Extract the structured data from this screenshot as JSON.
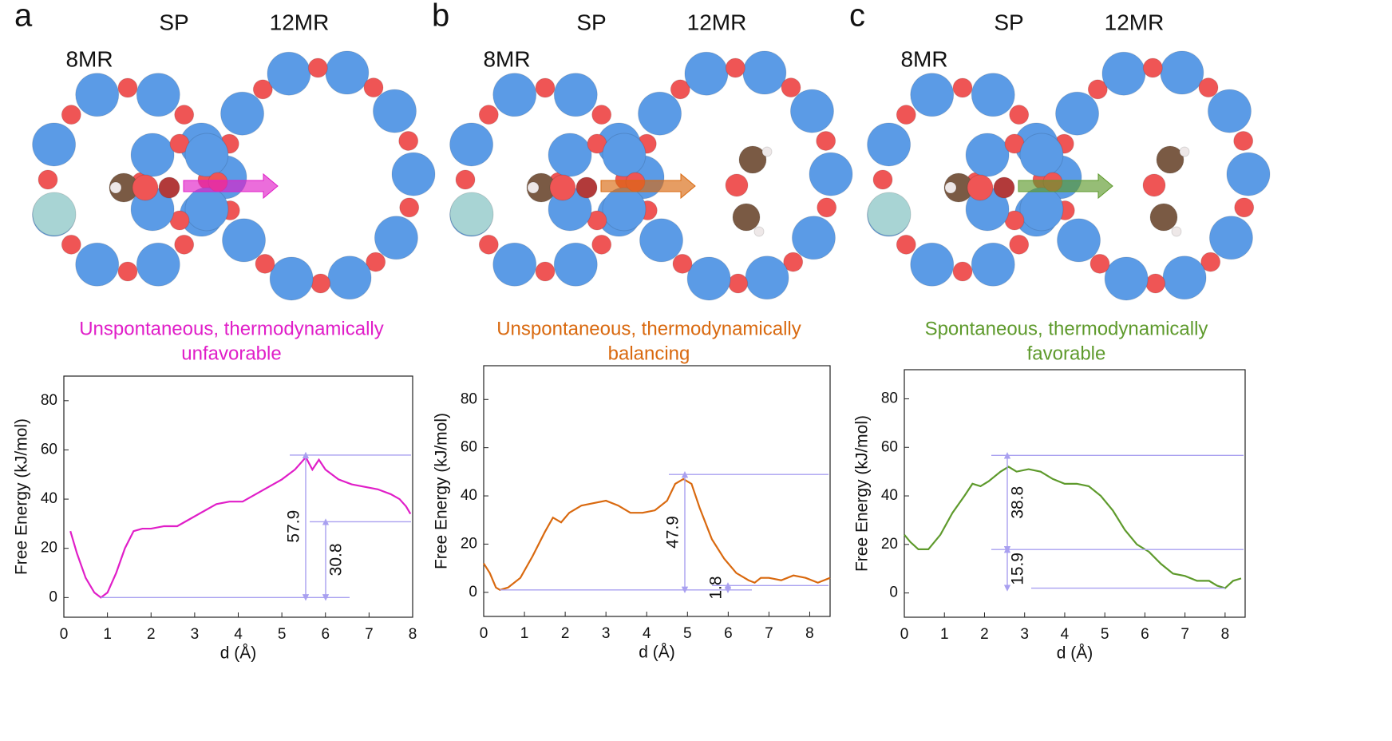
{
  "chart_data": [
    {
      "type": "line",
      "panel": "a",
      "ring_labels": [
        "8MR",
        "SP",
        "12MR"
      ],
      "caption": [
        "Unspontaneous, thermodynamically",
        "unfavorable"
      ],
      "color": "#e01ec8",
      "x_label": "d (Å)",
      "y_label": "Free Energy (kJ/mol)",
      "xlim": [
        0,
        8
      ],
      "xticks": [
        0,
        1,
        2,
        3,
        4,
        5,
        6,
        7,
        8
      ],
      "ylim": [
        -8,
        90
      ],
      "yticks": [
        0,
        20,
        40,
        60,
        80
      ],
      "x": [
        0.15,
        0.3,
        0.5,
        0.7,
        0.85,
        1.0,
        1.2,
        1.4,
        1.6,
        1.8,
        2.0,
        2.3,
        2.6,
        2.9,
        3.2,
        3.5,
        3.8,
        4.1,
        4.4,
        4.7,
        5.0,
        5.3,
        5.55,
        5.7,
        5.85,
        6.0,
        6.3,
        6.6,
        6.9,
        7.2,
        7.5,
        7.7,
        7.85,
        7.95
      ],
      "values": [
        27,
        18,
        8,
        2,
        0,
        2,
        10,
        20,
        27,
        28,
        28,
        29,
        29,
        32,
        35,
        38,
        39,
        39,
        42,
        45,
        48,
        52,
        57,
        52,
        56,
        52,
        48,
        46,
        45,
        44,
        42,
        40,
        37,
        34
      ],
      "annotations": [
        57.9,
        30.8
      ],
      "stacked": false
    },
    {
      "type": "line",
      "panel": "b",
      "ring_labels": [
        "8MR",
        "SP",
        "12MR"
      ],
      "caption": [
        "Unspontaneous, thermodynamically",
        "balancing"
      ],
      "color": "#d9690f",
      "x_label": "d (Å)",
      "y_label": "Free Energy (kJ/mol)",
      "xlim": [
        0,
        8.5
      ],
      "xticks": [
        0,
        1,
        2,
        3,
        4,
        5,
        6,
        7,
        8
      ],
      "ylim": [
        -10,
        94
      ],
      "yticks": [
        0,
        20,
        40,
        60,
        80
      ],
      "x": [
        0,
        0.15,
        0.3,
        0.4,
        0.6,
        0.9,
        1.2,
        1.5,
        1.7,
        1.9,
        2.1,
        2.4,
        2.7,
        3.0,
        3.3,
        3.6,
        3.9,
        4.2,
        4.5,
        4.7,
        4.9,
        5.1,
        5.3,
        5.6,
        5.9,
        6.2,
        6.5,
        6.65,
        6.8,
        7.0,
        7.3,
        7.6,
        7.9,
        8.2,
        8.5
      ],
      "values": [
        12,
        8,
        2,
        1,
        2,
        6,
        15,
        25,
        31,
        29,
        33,
        36,
        37,
        38,
        36,
        33,
        33,
        34,
        38,
        45,
        47,
        45,
        35,
        22,
        14,
        8,
        5,
        4,
        6,
        6,
        5,
        7,
        6,
        4,
        6
      ],
      "annotations": [
        47.9,
        1.8
      ],
      "stacked": false
    },
    {
      "type": "line",
      "panel": "c",
      "ring_labels": [
        "8MR",
        "SP",
        "12MR"
      ],
      "caption": [
        "Spontaneous, thermodynamically",
        "favorable"
      ],
      "color": "#5e9a2c",
      "x_label": "d (Å)",
      "y_label": "Free Energy (kJ/mol)",
      "xlim": [
        0,
        8.5
      ],
      "xticks": [
        0,
        1,
        2,
        3,
        4,
        5,
        6,
        7,
        8
      ],
      "ylim": [
        -10,
        92
      ],
      "yticks": [
        0,
        20,
        40,
        60,
        80
      ],
      "x": [
        0,
        0.15,
        0.35,
        0.6,
        0.9,
        1.2,
        1.5,
        1.7,
        1.9,
        2.1,
        2.4,
        2.6,
        2.8,
        3.1,
        3.4,
        3.7,
        4.0,
        4.3,
        4.6,
        4.9,
        5.2,
        5.5,
        5.8,
        6.1,
        6.4,
        6.7,
        7.0,
        7.3,
        7.6,
        7.8,
        8.0,
        8.2,
        8.4
      ],
      "values": [
        24,
        21,
        18,
        18,
        24,
        33,
        40,
        45,
        44,
        46,
        50,
        52,
        50,
        51,
        50,
        47,
        45,
        45,
        44,
        40,
        34,
        26,
        20,
        17,
        12,
        8,
        7,
        5,
        5,
        3,
        2,
        5,
        6
      ],
      "annotations": [
        15.9,
        38.8
      ],
      "stacked": true
    }
  ]
}
